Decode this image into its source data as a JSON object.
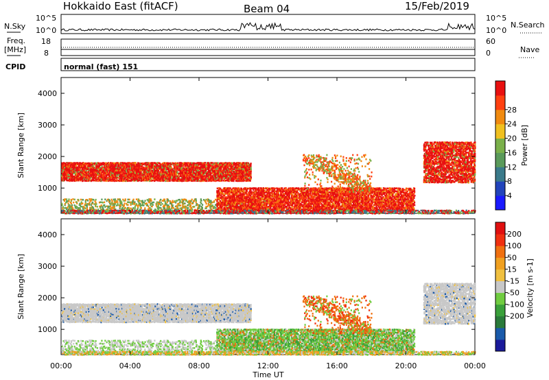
{
  "header": {
    "station": "Hokkaido East (fitACF)",
    "beam": "Beam 04",
    "date": "15/Feb/2019"
  },
  "strips": {
    "nsky_label": "N.Sky",
    "nsky_ticks": [
      "10^5",
      "10^0"
    ],
    "freq_label_top": "Freq.",
    "freq_label_unit": "[MHz]",
    "freq_ticks": [
      "18",
      "8"
    ],
    "cpid_label": "CPID",
    "cpid_text": "normal (fast) 151",
    "nsearch_label": "N.Search",
    "nsearch_ticks": [
      "10^5",
      "10^0"
    ],
    "nave_label": "Nave",
    "nave_ticks": [
      "60",
      "0"
    ]
  },
  "chart_data": [
    {
      "type": "heatmap",
      "name": "power",
      "ylabel": "Slant Range [km]",
      "yticks": [
        1000,
        2000,
        3000,
        4000
      ],
      "ylim": [
        200,
        4500
      ],
      "colorbar": {
        "label": "Power [dB]",
        "ticks": [
          "4",
          "8",
          "12",
          "16",
          "20",
          "24",
          "28"
        ],
        "colors": [
          "#1a1aff",
          "#2244bb",
          "#3a7a8a",
          "#5a9a5a",
          "#7ab04a",
          "#f0c020",
          "#f08a10",
          "#ff4010",
          "#e81010"
        ]
      }
    },
    {
      "type": "heatmap",
      "name": "velocity",
      "ylabel": "Slant Range [km]",
      "yticks": [
        1000,
        2000,
        3000,
        4000
      ],
      "ylim": [
        200,
        4500
      ],
      "colorbar": {
        "label": "Velocity [m s-1]",
        "ticks": [
          "200",
          "100",
          "50",
          "15",
          "-15",
          "-50",
          "-100",
          "-200"
        ],
        "colors": [
          "#1a1a9a",
          "#1a5aaa",
          "#2a7a3a",
          "#3aa03a",
          "#70cc40",
          "#c8c8c8",
          "#f0c040",
          "#f0a020",
          "#f07010",
          "#f03010",
          "#e01010"
        ]
      }
    }
  ],
  "xaxis": {
    "ticks": [
      "00:00",
      "04:00",
      "08:00",
      "12:00",
      "16:00",
      "20:00",
      "00:00"
    ],
    "label": "Time UT"
  }
}
